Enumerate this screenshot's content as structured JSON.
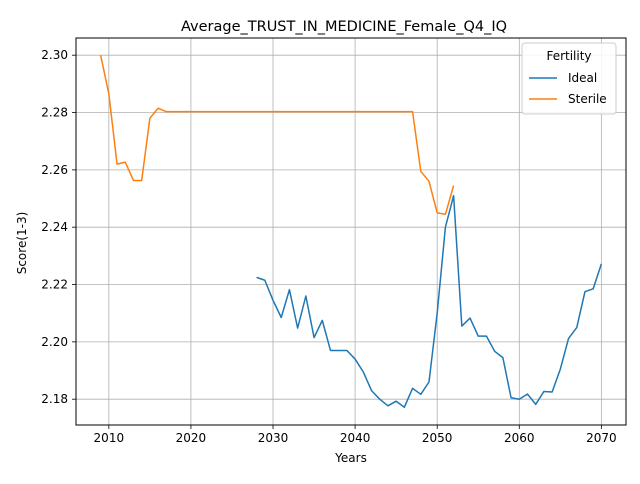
{
  "chart_data": {
    "type": "line",
    "title": "Average_TRUST_IN_MEDICINE_Female_Q4_IQ",
    "xlabel": "Years",
    "ylabel": "Score(1-3)",
    "xlim": [
      2006,
      2073
    ],
    "ylim": [
      2.171,
      2.306
    ],
    "xticks": [
      2010,
      2020,
      2030,
      2040,
      2050,
      2060,
      2070
    ],
    "yticks": [
      2.18,
      2.2,
      2.22,
      2.24,
      2.26,
      2.28,
      2.3
    ],
    "ytick_labels": [
      "2.18",
      "2.20",
      "2.22",
      "2.24",
      "2.26",
      "2.28",
      "2.30"
    ],
    "grid": true,
    "legend": {
      "title": "Fertility",
      "placement": "top-right"
    },
    "series": [
      {
        "name": "Ideal",
        "color": "#1f77b4",
        "x": [
          2028,
          2029,
          2030,
          2031,
          2032,
          2033,
          2034,
          2035,
          2036,
          2037,
          2038,
          2039,
          2040,
          2041,
          2042,
          2043,
          2044,
          2045,
          2046,
          2047,
          2048,
          2049,
          2050,
          2051,
          2052,
          2053,
          2054,
          2055,
          2056,
          2057,
          2058,
          2059,
          2060,
          2061,
          2062,
          2063,
          2064,
          2065,
          2066,
          2067,
          2068,
          2069,
          2070
        ],
        "values": [
          2.2225,
          2.2215,
          2.2145,
          2.2085,
          2.2182,
          2.2048,
          2.216,
          2.2015,
          2.2075,
          2.197,
          2.197,
          2.197,
          2.194,
          2.1895,
          2.183,
          2.18,
          2.1777,
          2.1793,
          2.1772,
          2.1838,
          2.1817,
          2.186,
          2.21,
          2.24,
          2.251,
          2.2055,
          2.2083,
          2.202,
          2.202,
          2.1967,
          2.1945,
          2.1805,
          2.18,
          2.1818,
          2.1782,
          2.1827,
          2.1825,
          2.1905,
          2.2012,
          2.205,
          2.2175,
          2.2185,
          2.2272
        ]
      },
      {
        "name": "Sterile",
        "color": "#ff7f0e",
        "x": [
          2009,
          2010,
          2011,
          2012,
          2013,
          2014,
          2015,
          2016,
          2017,
          2018,
          2019,
          2020,
          2021,
          2022,
          2023,
          2024,
          2025,
          2026,
          2027,
          2028,
          2029,
          2030,
          2031,
          2032,
          2033,
          2034,
          2035,
          2036,
          2037,
          2038,
          2039,
          2040,
          2041,
          2042,
          2043,
          2044,
          2045,
          2046,
          2047,
          2048,
          2049,
          2050,
          2051,
          2052
        ],
        "values": [
          2.3,
          2.2865,
          2.262,
          2.2627,
          2.2563,
          2.2563,
          2.278,
          2.2815,
          2.2803,
          2.2803,
          2.2803,
          2.2803,
          2.2803,
          2.2803,
          2.2803,
          2.2803,
          2.2803,
          2.2803,
          2.2803,
          2.2803,
          2.2803,
          2.2803,
          2.2803,
          2.2803,
          2.2803,
          2.2803,
          2.2803,
          2.2803,
          2.2803,
          2.2803,
          2.2803,
          2.2803,
          2.2803,
          2.2803,
          2.2803,
          2.2803,
          2.2803,
          2.2803,
          2.2803,
          2.2595,
          2.256,
          2.245,
          2.2445,
          2.2545
        ]
      }
    ]
  }
}
